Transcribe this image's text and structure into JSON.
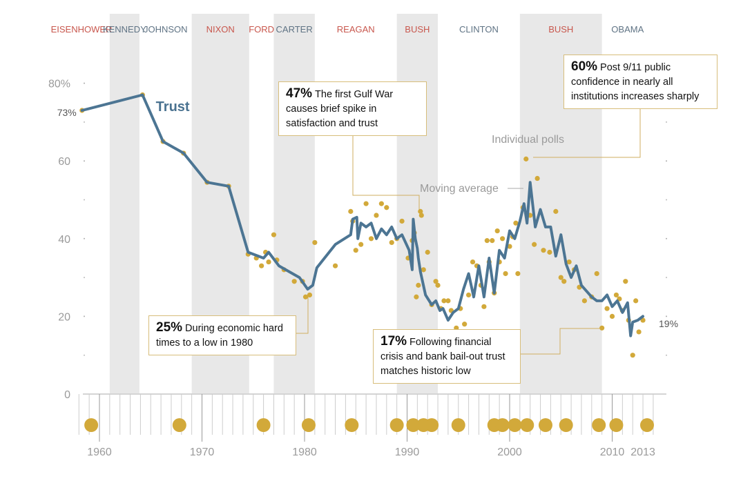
{
  "chart_data": {
    "type": "line",
    "title": "Trust",
    "ylabel": "",
    "xlabel": "",
    "ylim": [
      0,
      85
    ],
    "xlim": [
      1958,
      2013
    ],
    "y_ticks": [
      {
        "value": 0,
        "label": "0"
      },
      {
        "value": 20,
        "label": "20"
      },
      {
        "value": 40,
        "label": "40"
      },
      {
        "value": 60,
        "label": "60"
      },
      {
        "value": 80,
        "label": "80%"
      }
    ],
    "x_ticks": [
      {
        "value": 1960,
        "label": "1960"
      },
      {
        "value": 1970,
        "label": "1970"
      },
      {
        "value": 1980,
        "label": "1980"
      },
      {
        "value": 1990,
        "label": "1990"
      },
      {
        "value": 2000,
        "label": "2000"
      },
      {
        "value": 2010,
        "label": "2010"
      },
      {
        "value": 2013,
        "label": "2013"
      }
    ],
    "presidents": [
      {
        "name": "EISENHOWER",
        "start": 1955.5,
        "end": 1961,
        "party": "R"
      },
      {
        "name": "KENNEDY",
        "start": 1961,
        "end": 1963.9,
        "party": "D"
      },
      {
        "name": "JOHNSON",
        "start": 1963.9,
        "end": 1969,
        "party": "D"
      },
      {
        "name": "NIXON",
        "start": 1969,
        "end": 1974.6,
        "party": "R"
      },
      {
        "name": "FORD",
        "start": 1974.6,
        "end": 1977,
        "party": "R"
      },
      {
        "name": "CARTER",
        "start": 1977,
        "end": 1981,
        "party": "D"
      },
      {
        "name": "REAGAN",
        "start": 1981,
        "end": 1989,
        "party": "R"
      },
      {
        "name": "BUSH",
        "start": 1989,
        "end": 1993,
        "party": "R"
      },
      {
        "name": "CLINTON",
        "start": 1993,
        "end": 2001,
        "party": "D"
      },
      {
        "name": "BUSH",
        "start": 2001,
        "end": 2009,
        "party": "R"
      },
      {
        "name": "OBAMA",
        "start": 2009,
        "end": 2014,
        "party": "D"
      }
    ],
    "series": [
      {
        "name": "Moving average",
        "x": [
          1958.3,
          1964.2,
          1966.2,
          1968.2,
          1970.5,
          1972.6,
          1974.5,
          1976,
          1976.5,
          1977.5,
          1979.5,
          1980.3,
          1980.8,
          1981.2,
          1983,
          1984.5,
          1984.7,
          1985.1,
          1985.2,
          1985.5,
          1986,
          1986.5,
          1987,
          1987.5,
          1988,
          1988.5,
          1989,
          1989.5,
          1990.2,
          1990.5,
          1990.6,
          1990.8,
          1991,
          1991.1,
          1991.3,
          1991.8,
          1992.4,
          1992.8,
          1993.2,
          1993.5,
          1994,
          1994.5,
          1995,
          1995.5,
          1996,
          1996.5,
          1997,
          1997.5,
          1998,
          1998.5,
          1999,
          1999.5,
          2000,
          2000.5,
          2001,
          2001.4,
          2001.7,
          2002,
          2002.5,
          2003,
          2003.5,
          2004,
          2004.5,
          2005,
          2005.5,
          2006,
          2006.5,
          2007,
          2008,
          2008.5,
          2009,
          2009.5,
          2010,
          2010.5,
          2011,
          2011.5,
          2011.8,
          2012,
          2012.5,
          2013
        ],
        "y": [
          73,
          77,
          65,
          62,
          54.5,
          53.5,
          36.5,
          35,
          36.5,
          33,
          30,
          27,
          28,
          32.5,
          38.5,
          41,
          45,
          45.5,
          40,
          44,
          43,
          44,
          40,
          42.5,
          41,
          43,
          40,
          41,
          37,
          32,
          45,
          40,
          37.5,
          35,
          31.5,
          25.5,
          23,
          24,
          21.5,
          22,
          19,
          21,
          22,
          27,
          31,
          25,
          33,
          25,
          35,
          26,
          37,
          35,
          42,
          40,
          44.5,
          49,
          44,
          54.5,
          43,
          47.5,
          43,
          43,
          35.5,
          41,
          33.5,
          30,
          33,
          28,
          25,
          24,
          24,
          25.5,
          22.5,
          24,
          21,
          23.5,
          15,
          18.5,
          19,
          20
        ]
      },
      {
        "name": "Individual polls",
        "points": [
          [
            1958.3,
            73
          ],
          [
            1964.2,
            77
          ],
          [
            1966.2,
            65
          ],
          [
            1968.2,
            62
          ],
          [
            1970.5,
            54.5
          ],
          [
            1972.6,
            53.5
          ],
          [
            1974.5,
            36
          ],
          [
            1975.3,
            35
          ],
          [
            1975.8,
            33
          ],
          [
            1976.2,
            36.5
          ],
          [
            1976.5,
            34
          ],
          [
            1977,
            41
          ],
          [
            1977.3,
            34.5
          ],
          [
            1978,
            32
          ],
          [
            1979,
            29
          ],
          [
            1979.8,
            29
          ],
          [
            1980.1,
            25
          ],
          [
            1980.5,
            25.5
          ],
          [
            1981,
            39
          ],
          [
            1983,
            33
          ],
          [
            1984.5,
            47
          ],
          [
            1984.7,
            44.5
          ],
          [
            1985,
            37
          ],
          [
            1985.5,
            38.5
          ],
          [
            1986,
            49
          ],
          [
            1986.5,
            40
          ],
          [
            1987,
            46
          ],
          [
            1987.5,
            49
          ],
          [
            1988,
            48
          ],
          [
            1988.5,
            39
          ],
          [
            1989,
            40
          ],
          [
            1989.5,
            44.5
          ],
          [
            1990.1,
            35
          ],
          [
            1990.5,
            39.5
          ],
          [
            1990.7,
            41.5
          ],
          [
            1990.9,
            25
          ],
          [
            1991.1,
            28
          ],
          [
            1991.3,
            47
          ],
          [
            1991.4,
            46
          ],
          [
            1991.6,
            32
          ],
          [
            1992,
            36.5
          ],
          [
            1992.4,
            23
          ],
          [
            1992.8,
            29
          ],
          [
            1993,
            28
          ],
          [
            1993.3,
            22
          ],
          [
            1993.6,
            24
          ],
          [
            1994,
            24
          ],
          [
            1994.3,
            21.5
          ],
          [
            1994.8,
            17
          ],
          [
            1995.2,
            22
          ],
          [
            1995.6,
            18
          ],
          [
            1996,
            25.5
          ],
          [
            1996.4,
            34
          ],
          [
            1996.8,
            33
          ],
          [
            1997.2,
            28
          ],
          [
            1997.5,
            22.5
          ],
          [
            1997.8,
            39.5
          ],
          [
            1998,
            34
          ],
          [
            1998.3,
            39.5
          ],
          [
            1998.5,
            26
          ],
          [
            1998.8,
            42
          ],
          [
            1999,
            34
          ],
          [
            1999.3,
            40
          ],
          [
            1999.6,
            31
          ],
          [
            2000,
            38
          ],
          [
            2000.3,
            40.5
          ],
          [
            2000.6,
            44
          ],
          [
            2000.8,
            31
          ],
          [
            2001.3,
            48
          ],
          [
            2001.6,
            60.5
          ],
          [
            2002,
            46
          ],
          [
            2002.4,
            38.5
          ],
          [
            2002.7,
            55.5
          ],
          [
            2003.3,
            37
          ],
          [
            2003.9,
            36.5
          ],
          [
            2004.5,
            47
          ],
          [
            2005,
            30
          ],
          [
            2005.3,
            29
          ],
          [
            2005.8,
            34
          ],
          [
            2006.3,
            32
          ],
          [
            2006.8,
            27.5
          ],
          [
            2007.3,
            24
          ],
          [
            2008,
            25
          ],
          [
            2008.5,
            31
          ],
          [
            2009,
            17
          ],
          [
            2009.5,
            22
          ],
          [
            2010,
            20
          ],
          [
            2010.4,
            25.5
          ],
          [
            2010.7,
            24.5
          ],
          [
            2011,
            21.5
          ],
          [
            2011.3,
            29
          ],
          [
            2011.6,
            19
          ],
          [
            2012,
            10
          ],
          [
            2012.3,
            24
          ],
          [
            2012.6,
            16
          ],
          [
            2013,
            19
          ]
        ]
      }
    ],
    "timeline_marker_years": [
      1959.2,
      1967.8,
      1976,
      1980.4,
      1984.6,
      1989,
      1990.6,
      1991.6,
      1992.4,
      1995,
      1998.5,
      1999.3,
      2000.5,
      2001.7,
      2003.5,
      2005.5,
      2008.7,
      2010.4,
      2013.4
    ],
    "series_label": "Trust",
    "series_label_position": {
      "x": 1965.5,
      "y": 75
    },
    "end_labels": {
      "start": "73%",
      "end": "19%"
    },
    "annotations": [
      {
        "id": "ann-1980",
        "pct": "25%",
        "text": "During economic hard times to a low in 1980",
        "anchor": [
          1980,
          25
        ]
      },
      {
        "id": "ann-gulf",
        "pct": "47%",
        "text": "The first Gulf War causes brief spike in satisfaction and trust",
        "anchor": [
          1990.6,
          47
        ]
      },
      {
        "id": "ann-911",
        "pct": "60%",
        "text": "Post 9/11 public confidence in nearly all institutions increases sharply",
        "anchor": [
          2001.6,
          60.5
        ]
      },
      {
        "id": "ann-2008",
        "pct": "17%",
        "text": "Following financial crisis and bank bail-out trust matches historic low",
        "anchor": [
          2009,
          17
        ]
      }
    ],
    "tags": [
      {
        "text": "Individual polls",
        "x": 2002,
        "y": 65.5
      },
      {
        "text": "Moving average",
        "x": 1997.5,
        "y": 52.5
      }
    ]
  },
  "colors": {
    "line": "#4c7593",
    "dot": "#d2a93a",
    "republican": "#c8574d",
    "democrat": "#5f7384",
    "band": "#e8e8e8",
    "callout_border": "#d7bd7a",
    "leader": "#cfae5f",
    "axis": "#9a9a9a"
  }
}
